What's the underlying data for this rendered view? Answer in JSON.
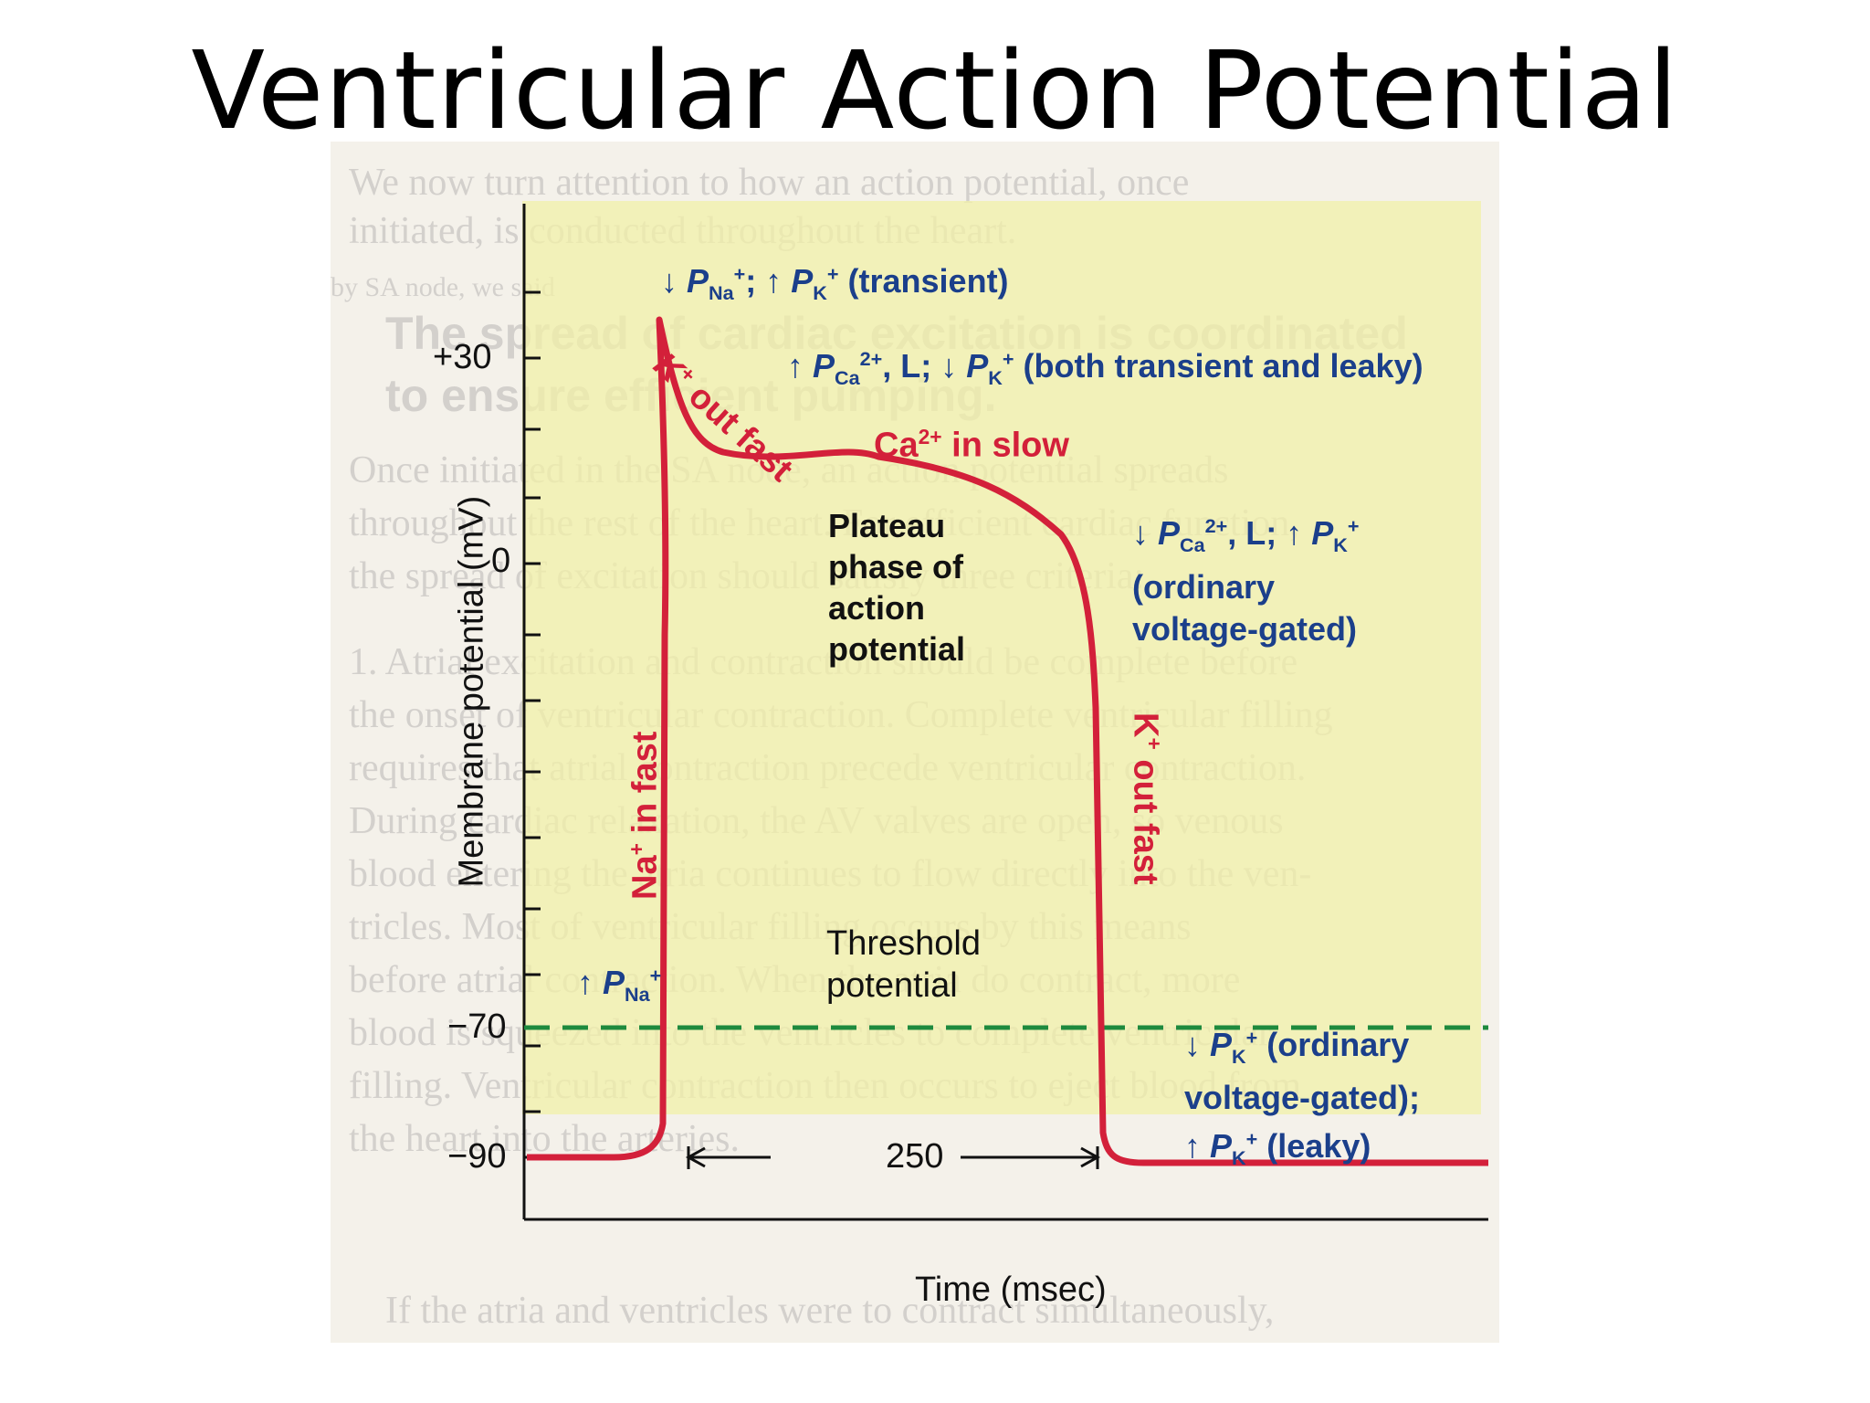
{
  "slide": {
    "title": "Ventricular Action Potential"
  },
  "figure": {
    "ylabel": "Membrane potential (mV)",
    "xlabel": "Time (msec)",
    "yticks": [
      "+30",
      "0",
      "−70",
      "−90"
    ],
    "duration_label": "250",
    "threshold_label_line1": "Threshold",
    "threshold_label_line2": "potential",
    "plateau_label": [
      "Plateau",
      "phase of",
      "action",
      "potential"
    ],
    "annotations": {
      "top_perm": {
        "arrow1": "↓",
        "p1": "P",
        "sub1": "Na",
        "sup1": "+",
        "sep": "; ",
        "arrow2": "↑",
        "p2": "P",
        "sub2": "K",
        "sup2": "+",
        "rest": " (transient)"
      },
      "ca_perm": {
        "arrow1": "↑",
        "p1": "P",
        "sub1": "Ca",
        "sup1": "2+",
        "mid": ", L; ",
        "arrow2": "↓",
        "p2": "P",
        "sub2": "K",
        "sup2": "+",
        "rest": " (both transient and leaky)"
      },
      "repol_perm": {
        "arrow1": "↓",
        "p1": "P",
        "sub1": "Ca",
        "sup1": "2+",
        "mid": ", L; ",
        "arrow2": "↑",
        "p2": "P",
        "sub2": "K",
        "sup2": "+",
        "line2": "(ordinary",
        "line3": "voltage-gated)"
      },
      "na_perm": {
        "arrow": "↑",
        "p": "P",
        "sub": "Na",
        "sup": "+"
      },
      "rest_perm": {
        "arrow1": "↓",
        "p1": "P",
        "sub1": "K",
        "sup1": "+",
        "rest1": " (ordinary",
        "line2": "voltage-gated);",
        "arrow2": "↑",
        "p2": "P",
        "sub2": "K",
        "sup2": "+",
        "rest2": " (leaky)"
      }
    },
    "ion_labels": {
      "k_out_fast_top": {
        "ion": "K",
        "sup": "+",
        "text": "out fast"
      },
      "ca_in_slow": {
        "ion": "Ca",
        "sup": "2+",
        "text": " in slow"
      },
      "na_in_fast": {
        "ion": "Na",
        "sup": "+",
        "text": " in fast"
      },
      "k_out_fast_right": {
        "ion": "K",
        "sup": "+",
        "text": " out fast"
      }
    },
    "background_text": {
      "lines": [
        "We now turn attention to how an action potential, once",
        "initiated, is conducted throughout the heart.",
        "by SA node, we said",
        "The spread of cardiac excitation is coordinated",
        "to ensure efficient pumping.",
        "Once initiated in the SA node, an action potential spreads",
        "throughout the rest of the heart. For efficient cardiac function,",
        "the spread of excitation should satisfy three criteria:",
        "1. Atrial excitation and contraction should be complete before",
        "the onset of ventricular contraction. Complete ventricular filling",
        "requires that atrial contraction precede ventricular contraction.",
        "During cardiac relaxation, the AV valves are open, so venous",
        "blood entering the atria continues to flow directly into the ven-",
        "tricles. Most of ventricular filling occurs by this means",
        "before atrial contraction. When the atria do contract, more",
        "blood is squeezed into the ventricles to complete ventricular",
        "filling. Ventricular contraction then occurs to eject blood from",
        "the heart into the arteries.",
        "If the atria and ventricles were to contract simultaneously,"
      ]
    },
    "colors": {
      "trace": "#d3203a",
      "threshold_line": "#1e8a3e",
      "text_blue": "#1b3f8b",
      "highlight": "#f2f0a8"
    }
  },
  "chart_data": {
    "type": "line",
    "title": "Ventricular Action Potential",
    "xlabel": "Time (msec)",
    "ylabel": "Membrane potential (mV)",
    "yticks": [
      30,
      0,
      -70,
      -90
    ],
    "threshold_mV": -70,
    "series": [
      {
        "points": [
          [
            0,
            -90
          ],
          [
            5,
            -90
          ],
          [
            12,
            -87
          ],
          [
            14,
            -70
          ],
          [
            16,
            0
          ],
          [
            18,
            30
          ],
          [
            22,
            18
          ],
          [
            40,
            8
          ],
          [
            70,
            5
          ],
          [
            130,
            1
          ],
          [
            190,
            -5
          ],
          [
            225,
            -15
          ],
          [
            240,
            -40
          ],
          [
            248,
            -80
          ],
          [
            252,
            -90
          ],
          [
            330,
            -90
          ]
        ]
      }
    ],
    "annotations": [
      "250"
    ]
  }
}
